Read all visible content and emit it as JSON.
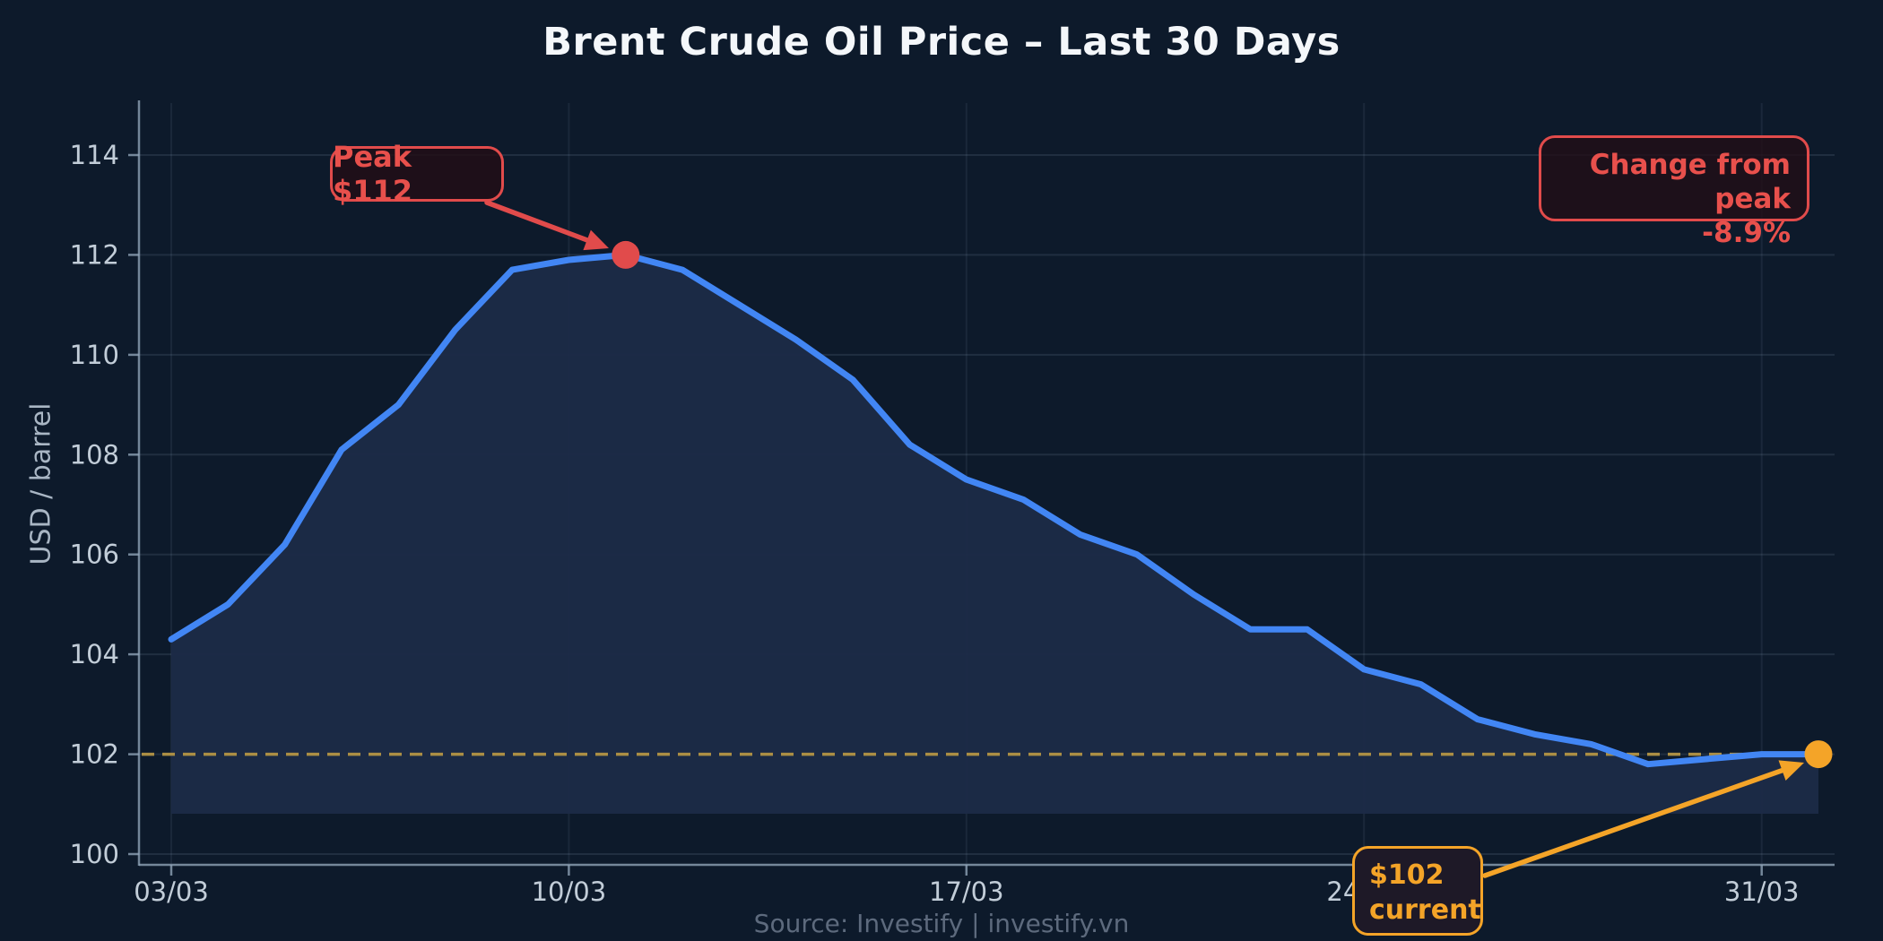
{
  "footer": "Source: Investify   |   investify.vn",
  "colors": {
    "background": "#0d1a2b",
    "line_blue": "#4286f4",
    "area_fill": "#1c2b47",
    "grid": "rgba(150,170,200,0.14)",
    "grid_vertical": "rgba(150,170,200,0.10)",
    "axis_spine": "#8fa3b6",
    "tick_label": "#c2cdd8",
    "reference_gold": "#ab8e44",
    "accent_red": "#e14b4b",
    "accent_orange": "#f4a428",
    "title_text": "#f4f7fa",
    "footer_text": "#5d6a7d"
  },
  "chart_data": {
    "type": "area",
    "title": "Brent Crude Oil Price – Last 30 Days",
    "xlabel": "",
    "ylabel": "USD / barrel",
    "x": [
      "03/03",
      "04/03",
      "05/03",
      "06/03",
      "07/03",
      "08/03",
      "09/03",
      "10/03",
      "11/03",
      "12/03",
      "13/03",
      "14/03",
      "15/03",
      "16/03",
      "17/03",
      "18/03",
      "19/03",
      "20/03",
      "21/03",
      "22/03",
      "23/03",
      "24/03",
      "25/03",
      "26/03",
      "27/03",
      "28/03",
      "29/03",
      "30/03",
      "31/03",
      "01/04"
    ],
    "values": [
      104.3,
      105.0,
      106.2,
      108.1,
      109.0,
      110.5,
      111.7,
      111.9,
      112.0,
      111.7,
      111.0,
      110.3,
      109.5,
      108.2,
      107.5,
      107.1,
      106.4,
      106.0,
      105.2,
      104.5,
      104.5,
      103.7,
      103.4,
      102.7,
      102.4,
      102.2,
      101.8,
      101.9,
      102.0,
      102.0
    ],
    "y_ticks": [
      100,
      102,
      104,
      106,
      108,
      110,
      112,
      114
    ],
    "x_tick_indices": [
      0,
      7,
      14,
      21,
      28
    ],
    "x_tick_labels": [
      "03/03",
      "10/03",
      "17/03",
      "24/03",
      "31/03"
    ],
    "ylim": [
      100,
      115
    ],
    "grid": true,
    "reference_line_value": 102,
    "peak_index": 8,
    "peak_value": 112.0,
    "current_index": 29,
    "current_value": 102.0,
    "annotations": {
      "peak": {
        "label": "Peak $112"
      },
      "change": {
        "line1": "Change from peak",
        "line2": "-8.9%"
      },
      "current": {
        "line1": "$102",
        "line2": "current"
      }
    }
  }
}
